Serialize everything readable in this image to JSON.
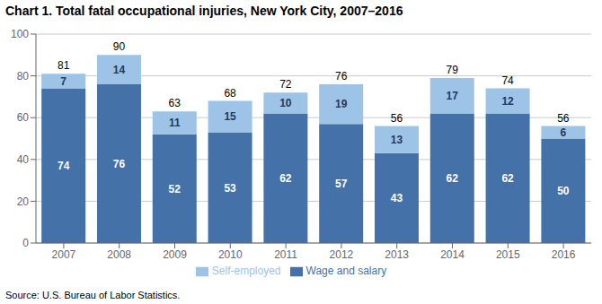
{
  "chart_data": {
    "type": "bar",
    "title": "Chart 1. Total fatal occupational injuries, New York City, 2007–2016",
    "categories": [
      "2007",
      "2008",
      "2009",
      "2010",
      "2011",
      "2012",
      "2013",
      "2014",
      "2015",
      "2016"
    ],
    "series": [
      {
        "name": "Wage and salary",
        "color": "#4472a8",
        "values": [
          74,
          76,
          52,
          53,
          62,
          57,
          43,
          62,
          62,
          50
        ]
      },
      {
        "name": "Self-employed",
        "color": "#9dc3e6",
        "values": [
          7,
          14,
          11,
          15,
          10,
          19,
          13,
          17,
          12,
          6
        ]
      }
    ],
    "totals": [
      81,
      90,
      63,
      68,
      72,
      76,
      56,
      79,
      74,
      56
    ],
    "stacked": true,
    "data_labels": true,
    "ylim": [
      0,
      100
    ],
    "yticks": [
      0,
      20,
      40,
      60,
      80,
      100
    ],
    "grid": true,
    "legend": "bottom",
    "source": "Source: U.S. Bureau of Labor Statistics."
  }
}
